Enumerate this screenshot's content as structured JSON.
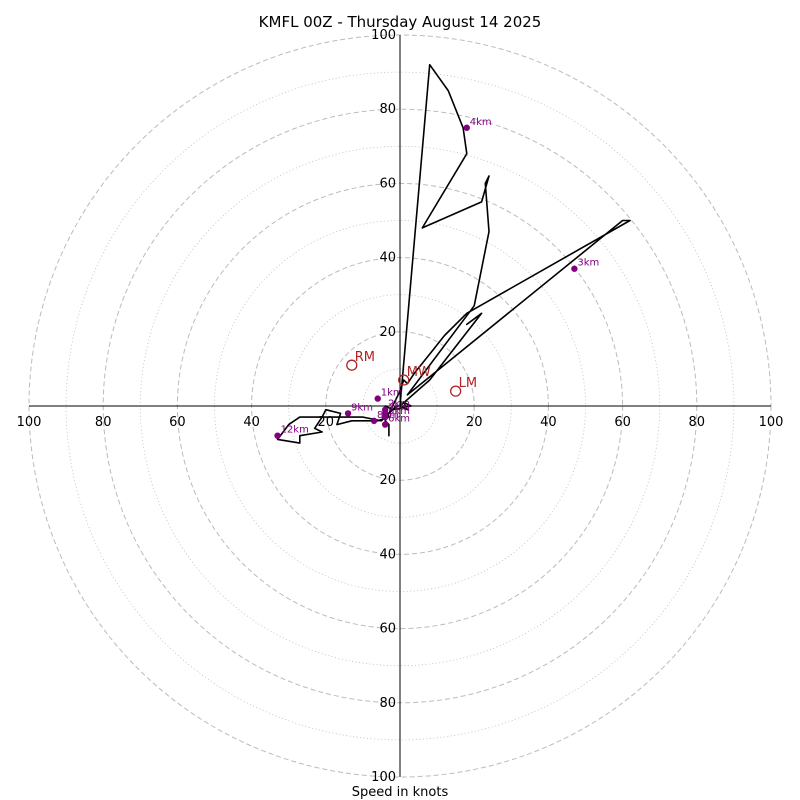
{
  "chart_data": {
    "type": "line",
    "title": "KMFL 00Z - Thursday August 14 2025",
    "xlabel": "Speed in knots",
    "ylabel": "",
    "xlim": [
      -100,
      100
    ],
    "ylim": [
      -100,
      100
    ],
    "ring_step": 20,
    "minor_ring_step": 10,
    "grid": true,
    "colors": {
      "hodograph": "#000000",
      "height_marker": "#800080",
      "motion_marker": "#b22222",
      "ring": "#bbbbbb"
    },
    "ticks": {
      "right": [
        "20",
        "40",
        "60",
        "80",
        "100"
      ],
      "left": [
        "20",
        "40",
        "60",
        "80",
        "100"
      ],
      "top": [
        "20",
        "40",
        "60",
        "80",
        "100"
      ],
      "bottom": [
        "20",
        "40",
        "60",
        "80",
        "100"
      ]
    },
    "series": [
      {
        "x": [
          -3,
          -3,
          -4,
          -3,
          -2,
          -1,
          0,
          2,
          1,
          3,
          -2,
          -4,
          -3,
          -6,
          -8,
          -10,
          -13,
          -17,
          -16,
          -20,
          -21,
          -23,
          -21,
          -27,
          -27,
          -33,
          -33,
          -30,
          -27,
          -22,
          -17,
          -10,
          -5,
          -3,
          -1,
          0,
          1,
          2,
          4,
          8,
          12,
          18,
          62,
          60,
          2,
          20,
          24,
          23,
          24,
          22,
          6,
          18,
          17,
          13,
          8,
          0,
          8,
          22,
          18
        ],
        "y": [
          -8,
          -5,
          -4,
          -2,
          -1,
          0,
          0,
          -1,
          1,
          0,
          -1,
          0,
          -3,
          -4,
          -4,
          -4,
          -4,
          -5,
          -2,
          -1,
          -3,
          -6,
          -7,
          -8,
          -10,
          -9,
          -9,
          -5,
          -3,
          -3,
          -3,
          -3,
          -4,
          -2,
          2,
          4,
          7,
          6,
          9,
          14,
          19,
          25,
          50,
          50,
          3,
          27,
          47,
          60,
          62,
          55,
          48,
          68,
          75,
          85,
          92,
          0,
          7,
          25,
          22
        ]
      }
    ],
    "height_markers": [
      {
        "label": "1km",
        "x": -6,
        "y": 2
      },
      {
        "label": "2km",
        "x": -4,
        "y": -1
      },
      {
        "label": "3km",
        "x": 47,
        "y": 37
      },
      {
        "label": "4km",
        "x": 18,
        "y": 75
      },
      {
        "label": "5km",
        "x": -4,
        "y": -3
      },
      {
        "label": "6km",
        "x": -4,
        "y": -5
      },
      {
        "label": "7km",
        "x": -4,
        "y": -2
      },
      {
        "label": "8km",
        "x": -7,
        "y": -4
      },
      {
        "label": "9km",
        "x": -14,
        "y": -2
      },
      {
        "label": "12km",
        "x": -33,
        "y": -8
      }
    ],
    "motion_markers": [
      {
        "label": "RM",
        "x": -13,
        "y": 11
      },
      {
        "label": "MW",
        "x": 1,
        "y": 7
      },
      {
        "label": "LM",
        "x": 15,
        "y": 4
      }
    ]
  }
}
